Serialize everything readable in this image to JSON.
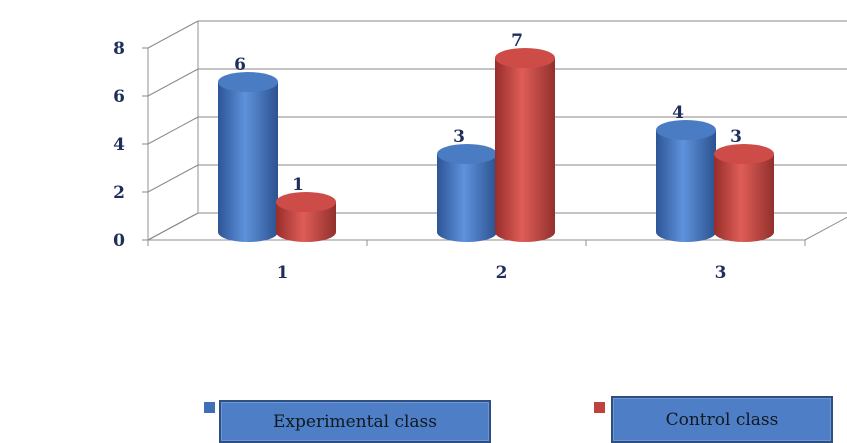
{
  "chart_data": {
    "type": "bar",
    "categories": [
      "1",
      "2",
      "3"
    ],
    "series": [
      {
        "name": "Experimental class",
        "values": [
          6,
          3,
          4
        ],
        "color": "#3f6fb7"
      },
      {
        "name": "Control class",
        "values": [
          1,
          7,
          3
        ],
        "color": "#c0423e"
      }
    ],
    "yticks": [
      "0",
      "2",
      "4",
      "6",
      "8"
    ],
    "ylim": [
      0,
      8
    ],
    "legend_position": "bottom",
    "bar_style": "3d-cylinder",
    "grid": true
  },
  "legend": {
    "experimental": "Experimental class",
    "control": "Control class"
  }
}
